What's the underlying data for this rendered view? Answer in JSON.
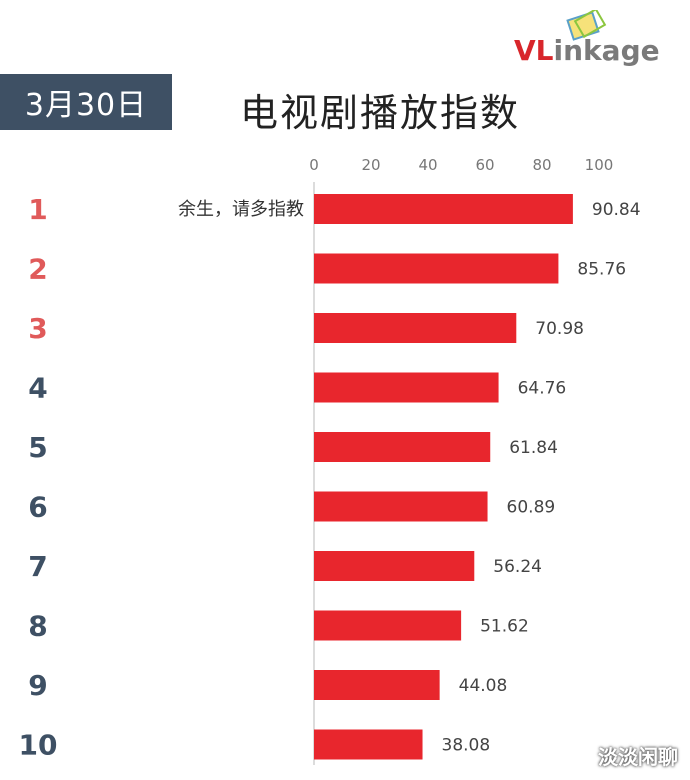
{
  "header": {
    "date": "3月30日",
    "title": "电视剧播放指数"
  },
  "logo": {
    "text_upper": "VL",
    "text_lower": "inkage",
    "brand_color": "#d8262b"
  },
  "watermark": "淡淡闲聊",
  "chart_data": {
    "type": "bar",
    "orientation": "horizontal",
    "title": "电视剧播放指数",
    "xlim": [
      0,
      100
    ],
    "x_ticks": [
      "0",
      "20",
      "40",
      "60",
      "80",
      "100"
    ],
    "ranks": [
      "1",
      "2",
      "3",
      "4",
      "5",
      "6",
      "7",
      "8",
      "9",
      "10"
    ],
    "categories": [
      "余生，请多指教",
      "",
      "",
      "",
      "",
      "",
      "",
      "",
      "",
      ""
    ],
    "values": [
      90.84,
      85.76,
      70.98,
      64.76,
      61.84,
      60.89,
      56.24,
      51.62,
      44.08,
      38.08
    ],
    "value_labels": [
      "90.84",
      "85.76",
      "70.98",
      "64.76",
      "61.84",
      "60.89",
      "56.24",
      "51.62",
      "44.08",
      "38.08"
    ],
    "bar_color": "#e8262d",
    "top_rank_color": "#e05a5a",
    "rank_color": "#3e5064",
    "grid": false
  }
}
